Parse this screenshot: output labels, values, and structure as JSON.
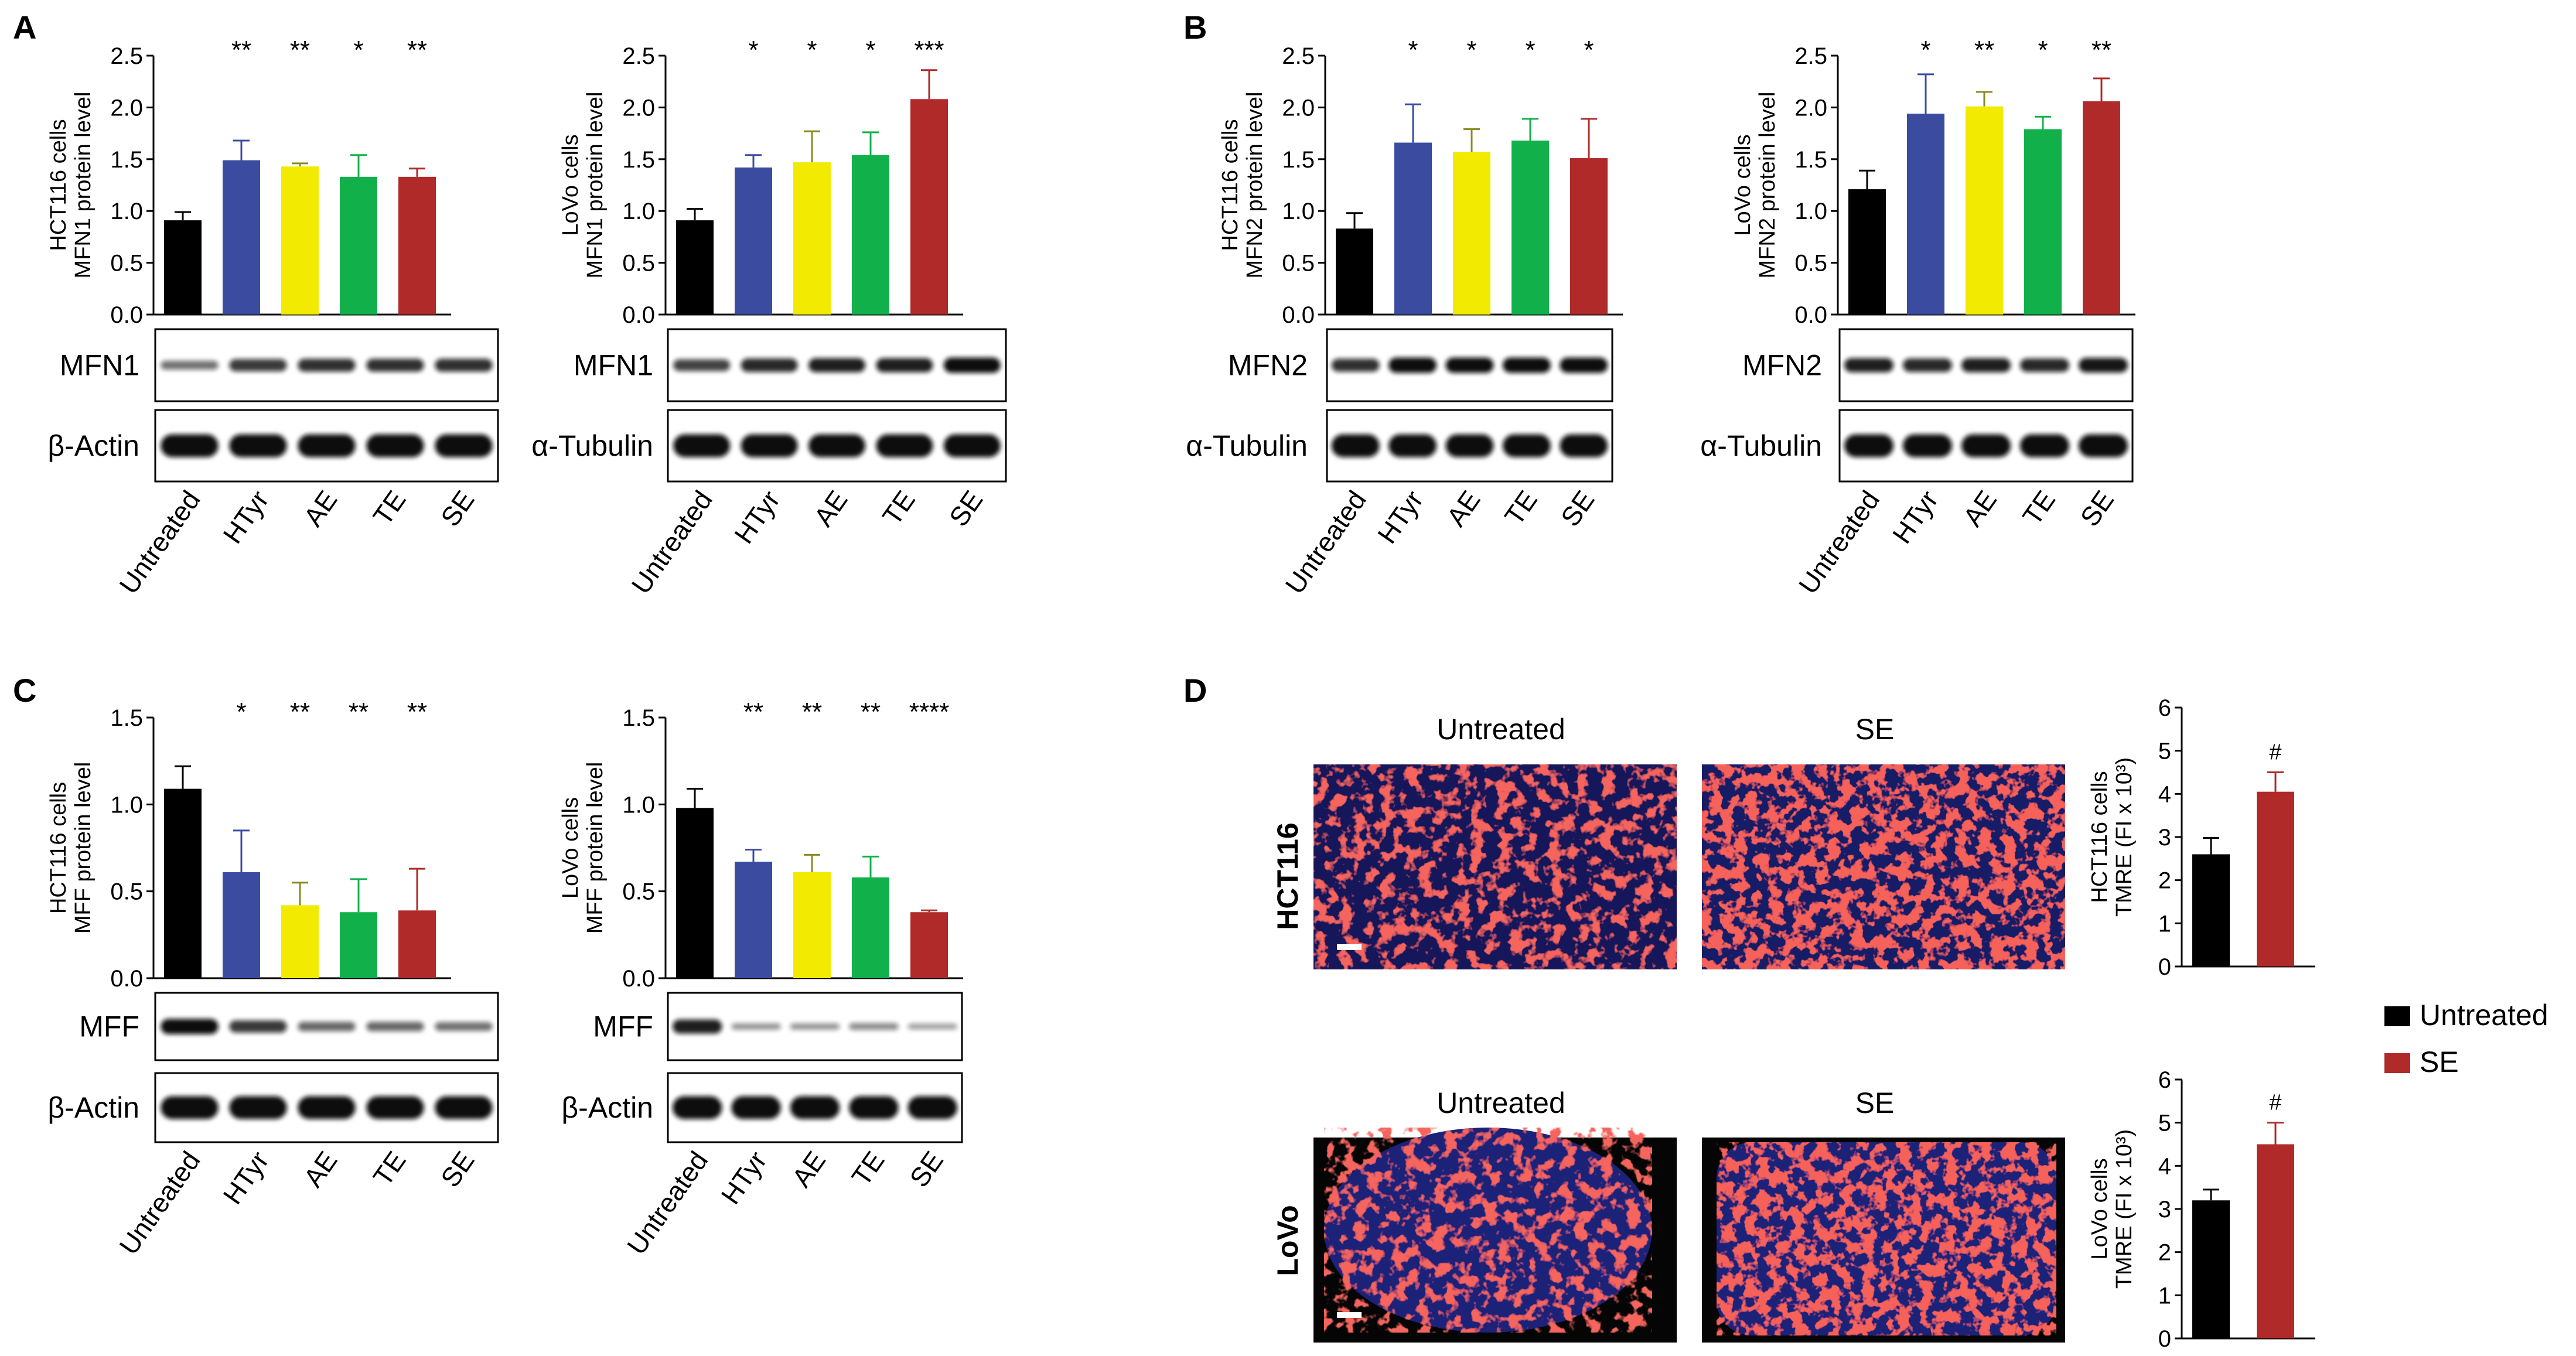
{
  "colors": {
    "untreated": "#000000",
    "htyr": "#3a4ba0",
    "ae": "#f2ea00",
    "te": "#12b04a",
    "se": "#b02a2a",
    "cell_red": "#e8221c",
    "nucleus_blue": "#2a3a9a",
    "band": "#0e0e0e"
  },
  "categories": [
    "Untreated",
    "HTyr",
    "AE",
    "TE",
    "SE"
  ],
  "panels": [
    {
      "label": "A"
    },
    {
      "label": "B"
    },
    {
      "label": "C"
    },
    {
      "label": "D"
    }
  ],
  "chart_data": [
    {
      "id": "A1",
      "type": "bar",
      "ylabel_lines": [
        "HCT116 cells",
        "MFN1 protein level"
      ],
      "categories": [
        "Untreated",
        "HTyr",
        "AE",
        "TE",
        "SE"
      ],
      "values": [
        0.91,
        1.49,
        1.43,
        1.33,
        1.33
      ],
      "errors": [
        0.08,
        0.19,
        0.03,
        0.21,
        0.08
      ],
      "significance": [
        "",
        "**",
        "**",
        "*",
        "**"
      ],
      "ylim": [
        0,
        2.5
      ],
      "yticks": [
        "0.0",
        "0.5",
        "1.0",
        "1.5",
        "2.0",
        "2.5"
      ],
      "blot_labels": [
        "MFN1",
        "β-Actin"
      ]
    },
    {
      "id": "A2",
      "type": "bar",
      "ylabel_lines": [
        "LoVo cells",
        "MFN1 protein level"
      ],
      "categories": [
        "Untreated",
        "HTyr",
        "AE",
        "TE",
        "SE"
      ],
      "values": [
        0.91,
        1.42,
        1.47,
        1.54,
        2.08
      ],
      "errors": [
        0.11,
        0.12,
        0.3,
        0.22,
        0.28
      ],
      "significance": [
        "",
        "*",
        "*",
        "*",
        "***"
      ],
      "ylim": [
        0,
        2.5
      ],
      "yticks": [
        "0.0",
        "0.5",
        "1.0",
        "1.5",
        "2.0",
        "2.5"
      ],
      "blot_labels": [
        "MFN1",
        "α-Tubulin"
      ]
    },
    {
      "id": "B1",
      "type": "bar",
      "ylabel_lines": [
        "HCT116 cells",
        "MFN2 protein level"
      ],
      "categories": [
        "Untreated",
        "HTyr",
        "AE",
        "TE",
        "SE"
      ],
      "values": [
        0.83,
        1.66,
        1.57,
        1.68,
        1.51
      ],
      "errors": [
        0.15,
        0.37,
        0.22,
        0.21,
        0.38
      ],
      "significance": [
        "",
        "*",
        "*",
        "*",
        "*"
      ],
      "ylim": [
        0,
        2.5
      ],
      "yticks": [
        "0.0",
        "0.5",
        "1.0",
        "1.5",
        "2.0",
        "2.5"
      ],
      "blot_labels": [
        "MFN2",
        "α-Tubulin"
      ]
    },
    {
      "id": "B2",
      "type": "bar",
      "ylabel_lines": [
        "LoVo cells",
        "MFN2 protein level"
      ],
      "categories": [
        "Untreated",
        "HTyr",
        "AE",
        "TE",
        "SE"
      ],
      "values": [
        1.21,
        1.94,
        2.01,
        1.79,
        2.06
      ],
      "errors": [
        0.18,
        0.38,
        0.14,
        0.12,
        0.22
      ],
      "significance": [
        "",
        "*",
        "**",
        "*",
        "**"
      ],
      "ylim": [
        0,
        2.5
      ],
      "yticks": [
        "0.0",
        "0.5",
        "1.0",
        "1.5",
        "2.0",
        "2.5"
      ],
      "blot_labels": [
        "MFN2",
        "α-Tubulin"
      ]
    },
    {
      "id": "C1",
      "type": "bar",
      "ylabel_lines": [
        "HCT116 cells",
        "MFF protein level"
      ],
      "categories": [
        "Untreated",
        "HTyr",
        "AE",
        "TE",
        "SE"
      ],
      "values": [
        1.09,
        0.61,
        0.42,
        0.38,
        0.39
      ],
      "errors": [
        0.13,
        0.24,
        0.13,
        0.19,
        0.24
      ],
      "significance": [
        "",
        "*",
        "**",
        "**",
        "**"
      ],
      "ylim": [
        0,
        1.5
      ],
      "yticks": [
        "0.0",
        "0.5",
        "1.0",
        "1.5"
      ],
      "blot_labels": [
        "MFF",
        "β-Actin"
      ]
    },
    {
      "id": "C2",
      "type": "bar",
      "ylabel_lines": [
        "LoVo cells",
        "MFF protein level"
      ],
      "categories": [
        "Untreated",
        "HTyr",
        "AE",
        "TE",
        "SE"
      ],
      "values": [
        0.98,
        0.67,
        0.61,
        0.58,
        0.38
      ],
      "errors": [
        0.11,
        0.07,
        0.1,
        0.12,
        0.01
      ],
      "significance": [
        "",
        "**",
        "**",
        "**",
        "****"
      ],
      "ylim": [
        0,
        1.5
      ],
      "yticks": [
        "0.0",
        "0.5",
        "1.0",
        "1.5"
      ],
      "blot_labels": [
        "MFF",
        "β-Actin"
      ]
    },
    {
      "id": "D1",
      "type": "bar",
      "ylabel_lines": [
        "HCT116 cells",
        "TMRE (FI x 10³)"
      ],
      "categories": [
        "Untreated",
        "SE"
      ],
      "values": [
        2.6,
        4.05
      ],
      "errors": [
        0.38,
        0.45
      ],
      "significance": [
        "",
        "#"
      ],
      "ylim": [
        0,
        6
      ],
      "yticks": [
        "0",
        "1",
        "2",
        "3",
        "4",
        "5",
        "6"
      ]
    },
    {
      "id": "D2",
      "type": "bar",
      "ylabel_lines": [
        "LoVo cells",
        "TMRE (FI x 10³)"
      ],
      "categories": [
        "Untreated",
        "SE"
      ],
      "values": [
        3.2,
        4.5
      ],
      "errors": [
        0.25,
        0.5
      ],
      "significance": [
        "",
        "#"
      ],
      "ylim": [
        0,
        6
      ],
      "yticks": [
        "0",
        "1",
        "2",
        "3",
        "4",
        "5",
        "6"
      ]
    }
  ],
  "microscopy": {
    "column_titles": [
      "Untreated",
      "SE"
    ],
    "row_labels": [
      "HCT116",
      "LoVo"
    ]
  },
  "legend": {
    "items": [
      {
        "label": "Untreated",
        "color": "#000000"
      },
      {
        "label": "SE",
        "color": "#b02a2a"
      }
    ]
  }
}
